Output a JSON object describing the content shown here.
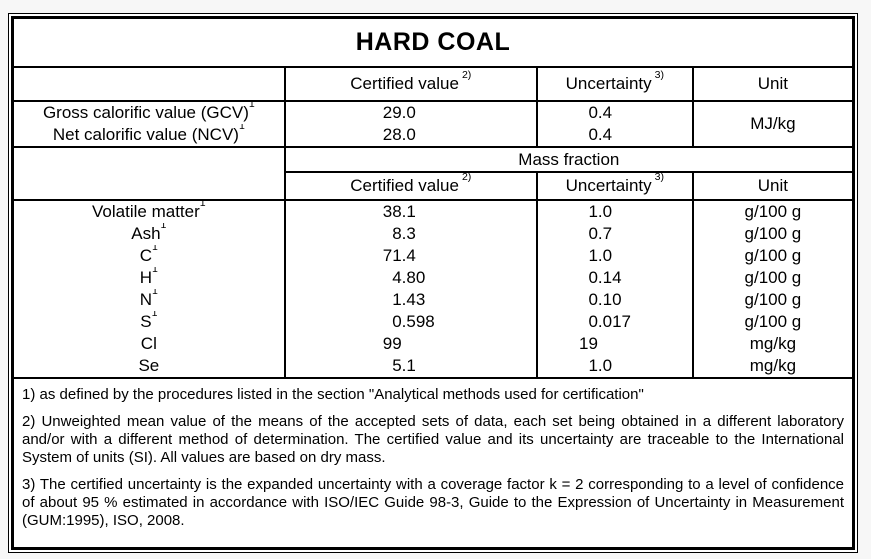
{
  "colors": {
    "page_bg": "#f7f7f7",
    "table_bg": "#ffffff",
    "border": "#000000",
    "text": "#000000"
  },
  "title": "HARD COAL",
  "header_top": {
    "certified_value": "Certified value",
    "certified_value_sup": "2)",
    "uncertainty": "Uncertainty",
    "uncertainty_sup": "3)",
    "unit": "Unit"
  },
  "calorific": {
    "rows": [
      {
        "label": "Gross calorific value (GCV)",
        "sup": "1",
        "value": "29.0",
        "uncertainty": "0.4"
      },
      {
        "label": "Net calorific value (NCV)",
        "sup": "1",
        "value": "28.0",
        "uncertainty": "0.4"
      }
    ],
    "unit": "MJ/kg"
  },
  "mass_fraction": {
    "section_label": "Mass fraction",
    "header": {
      "certified_value": "Certified value",
      "certified_value_sup": "2)",
      "uncertainty": "Uncertainty",
      "uncertainty_sup": "3)",
      "unit": "Unit"
    },
    "rows": [
      {
        "label": "Volatile matter",
        "sup": "1",
        "value": "38.1",
        "uncertainty": "1.0",
        "unit": "g/100 g"
      },
      {
        "label": "Ash",
        "sup": "1",
        "value": "8.3",
        "uncertainty": "0.7",
        "unit": "g/100 g"
      },
      {
        "label": "C",
        "sup": "1",
        "value": "71.4",
        "uncertainty": "1.0",
        "unit": "g/100 g"
      },
      {
        "label": "H",
        "sup": "1",
        "value": "4.80",
        "uncertainty": "0.14",
        "unit": "g/100 g"
      },
      {
        "label": "N",
        "sup": "1",
        "value": "1.43",
        "uncertainty": "0.10",
        "unit": "g/100 g"
      },
      {
        "label": "S",
        "sup": "1",
        "value": "0.598",
        "uncertainty": "0.017",
        "unit": "g/100 g"
      },
      {
        "label": "Cl",
        "sup": "",
        "value": "99",
        "uncertainty": "19",
        "unit": "mg/kg"
      },
      {
        "label": "Se",
        "sup": "",
        "value": "5.1",
        "uncertainty": "1.0",
        "unit": "mg/kg"
      }
    ]
  },
  "footnotes": [
    "1) as defined by the procedures listed in the section \"Analytical methods used for certification\"",
    "2) Unweighted mean value of the means of the accepted sets of data, each set being obtained in a different laboratory and/or with a different method of determination. The certified value and its uncertainty are traceable to the International System of units (SI). All values are based on dry mass.",
    "3) The certified uncertainty is the expanded uncertainty with a coverage factor k = 2 corresponding to a level of confidence of about 95 % estimated in accordance with ISO/IEC Guide 98-3, Guide to the Expression of Uncertainty in Measurement (GUM:1995), ISO, 2008."
  ]
}
